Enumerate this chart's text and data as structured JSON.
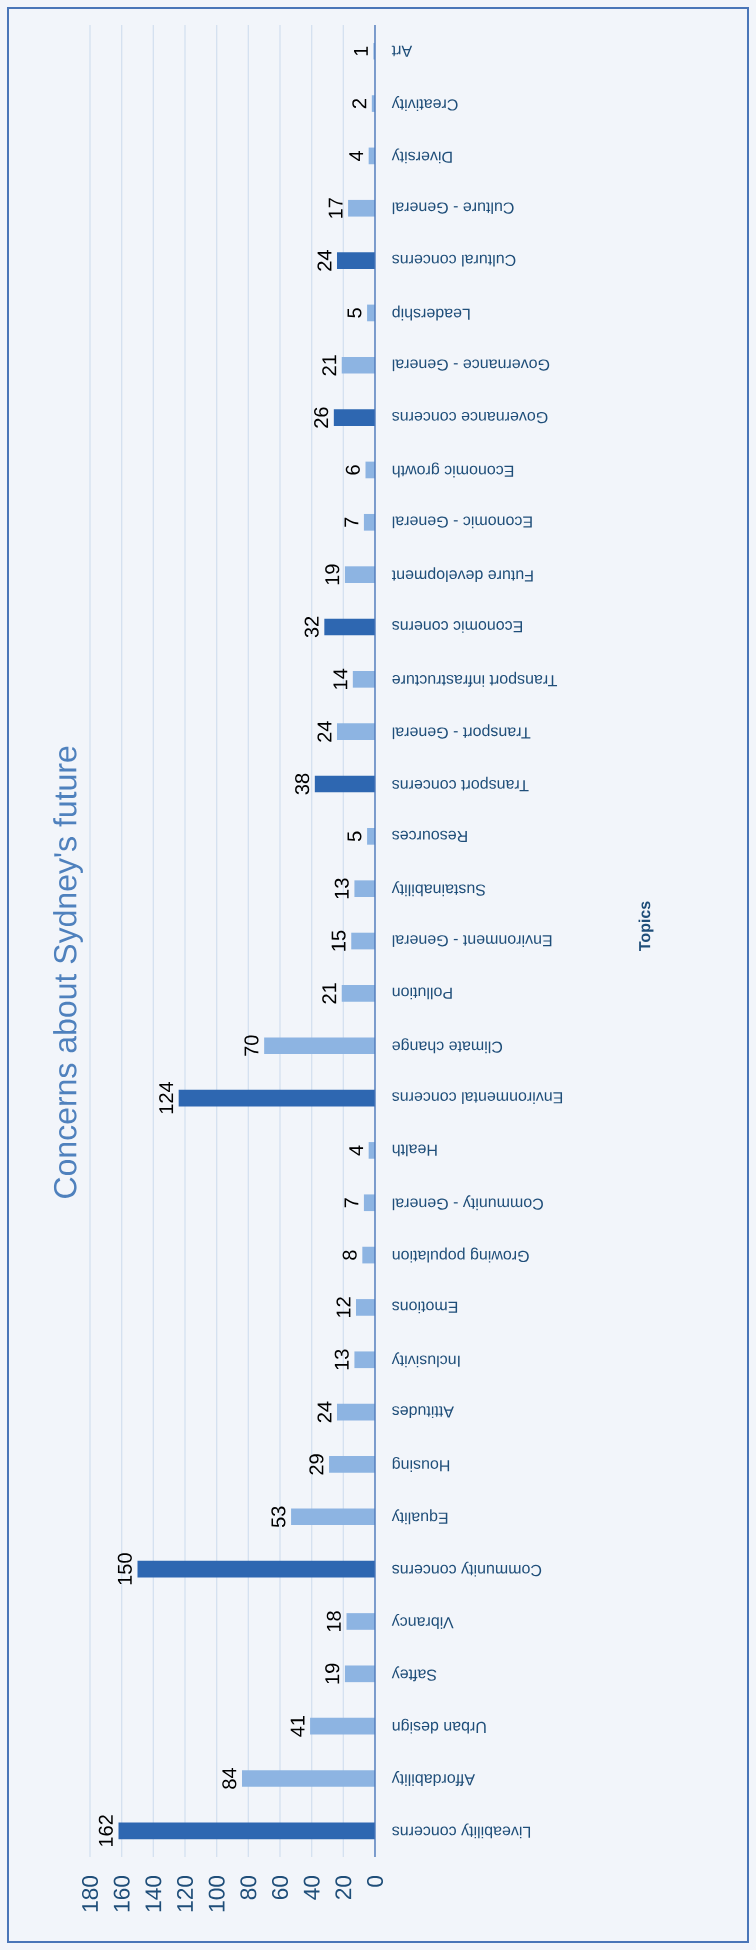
{
  "chart_data": {
    "type": "bar",
    "orientation": "horizontal",
    "title": "Concerns about Sydney's future",
    "ylabel": "Topics",
    "categories": [
      "Art",
      "Creativity",
      "Diversity",
      "Culture - General",
      "Cultural concerns",
      "Leadership",
      "Governance - General",
      "Governance concerns",
      "Economic growth",
      "Economic - General",
      "Future development",
      "Economic conerns",
      "Transport infrastructure",
      "Transport - General",
      "Transport concerns",
      "Resources",
      "Sustainability",
      "Environment - General",
      "Pollution",
      "Climate change",
      "Environmental concerns",
      "Health",
      "Community - General",
      "Growing population",
      "Emotions",
      "Inclusivity",
      "Attitudes",
      "Housing",
      "Equality",
      "Community concerns",
      "Vibrancy",
      "Saftey",
      "Urban design",
      "Affordability",
      "Liveability concerns"
    ],
    "values": [
      1,
      2,
      4,
      17,
      24,
      5,
      21,
      26,
      6,
      7,
      19,
      32,
      14,
      24,
      38,
      5,
      13,
      15,
      21,
      70,
      124,
      4,
      7,
      8,
      12,
      13,
      24,
      29,
      53,
      150,
      18,
      19,
      41,
      84,
      162
    ],
    "colors": [
      "#8db4e2",
      "#8db4e2",
      "#8db4e2",
      "#8db4e2",
      "#2e67b1",
      "#8db4e2",
      "#8db4e2",
      "#2e67b1",
      "#8db4e2",
      "#8db4e2",
      "#8db4e2",
      "#2e67b1",
      "#8db4e2",
      "#8db4e2",
      "#2e67b1",
      "#8db4e2",
      "#8db4e2",
      "#8db4e2",
      "#8db4e2",
      "#8db4e2",
      "#2e67b1",
      "#8db4e2",
      "#8db4e2",
      "#8db4e2",
      "#8db4e2",
      "#8db4e2",
      "#8db4e2",
      "#8db4e2",
      "#8db4e2",
      "#2e67b1",
      "#8db4e2",
      "#8db4e2",
      "#8db4e2",
      "#8db4e2",
      "#2e67b1"
    ],
    "xlim": [
      180,
      0
    ],
    "xticks": [
      0,
      20,
      40,
      60,
      80,
      100,
      120,
      140,
      160,
      180
    ],
    "grid": "x",
    "data_labels": true
  }
}
